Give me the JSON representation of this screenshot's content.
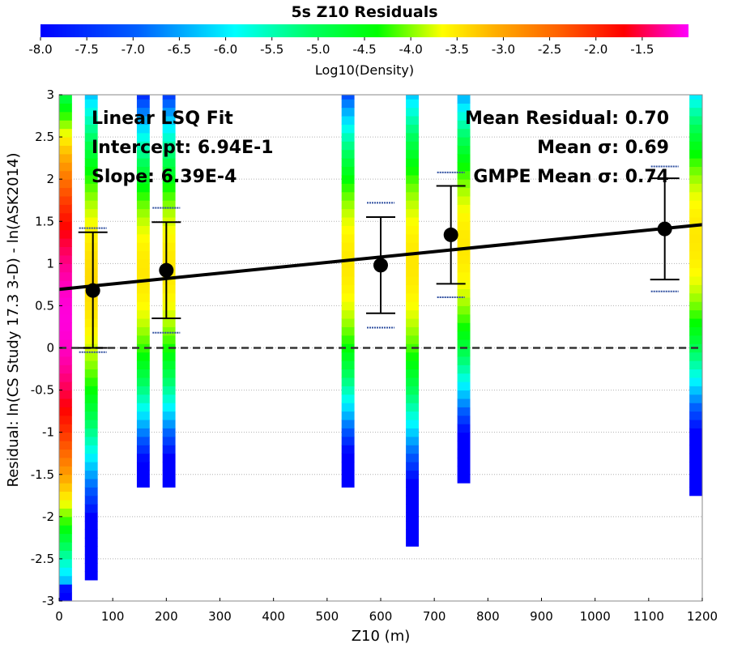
{
  "chart_data": {
    "type": "scatter",
    "title": "5s Z10 Residuals",
    "xlabel": "Z10 (m)",
    "ylabel": "Residual: ln(CS Study 17.3 3-D) - ln(ASK2014)",
    "xlim": [
      0,
      1200
    ],
    "ylim": [
      -3,
      3
    ],
    "x_ticks": [
      "0",
      "100",
      "200",
      "300",
      "400",
      "500",
      "600",
      "700",
      "800",
      "900",
      "1000",
      "1100",
      "1200"
    ],
    "y_ticks": [
      "-3",
      "-2.5",
      "-2",
      "-1.5",
      "-1",
      "-0.5",
      "0",
      "0.5",
      "1",
      "1.5",
      "2",
      "2.5",
      "3"
    ],
    "grid": "horizontal dotted",
    "colorbar": {
      "label": "Log10(Density)",
      "range": [
        -8.0,
        -1.0
      ],
      "ticks": [
        "-8.0",
        "-7.5",
        "-7.0",
        "-6.5",
        "-6.0",
        "-5.5",
        "-5.0",
        "-4.5",
        "-4.0",
        "-3.5",
        "-3.0",
        "-2.5",
        "-2.0",
        "-1.5"
      ],
      "colormap": "rainbow: blue, cyan, green, yellow, orange, red, magenta"
    },
    "fit_line": {
      "intercept": 0.694,
      "slope": 0.000639
    },
    "zero_line": 0,
    "bins": [
      {
        "x": 63,
        "mean": 0.68,
        "sigma_low": 0.0,
        "sigma_high": 1.37,
        "gmpe_low": -0.05,
        "gmpe_high": 1.42
      },
      {
        "x": 200,
        "mean": 0.92,
        "sigma_low": 0.35,
        "sigma_high": 1.49,
        "gmpe_low": 0.18,
        "gmpe_high": 1.66
      },
      {
        "x": 600,
        "mean": 0.98,
        "sigma_low": 0.41,
        "sigma_high": 1.55,
        "gmpe_low": 0.24,
        "gmpe_high": 1.72
      },
      {
        "x": 731,
        "mean": 1.34,
        "sigma_low": 0.76,
        "sigma_high": 1.92,
        "gmpe_low": 0.6,
        "gmpe_high": 2.08
      },
      {
        "x": 1130,
        "mean": 1.41,
        "sigma_low": 0.81,
        "sigma_high": 2.01,
        "gmpe_low": 0.67,
        "gmpe_high": 2.15
      }
    ],
    "density_columns": [
      {
        "x0": 0,
        "x1": 24,
        "ymin": -3.0,
        "ymax": 3.0,
        "peak": 0.35,
        "peak_logd": -1.1
      },
      {
        "x0": 48,
        "x1": 72,
        "ymin": -2.75,
        "ymax": 3.0,
        "peak": 0.8,
        "peak_logd": -3.4
      },
      {
        "x0": 145,
        "x1": 169,
        "ymin": -1.65,
        "ymax": 3.0,
        "peak": 0.9,
        "peak_logd": -3.5
      },
      {
        "x0": 193,
        "x1": 217,
        "ymin": -1.65,
        "ymax": 3.0,
        "peak": 0.95,
        "peak_logd": -3.5
      },
      {
        "x0": 527,
        "x1": 551,
        "ymin": -1.65,
        "ymax": 3.0,
        "peak": 1.0,
        "peak_logd": -3.5
      },
      {
        "x0": 647,
        "x1": 671,
        "ymin": -2.35,
        "ymax": 3.0,
        "peak": 1.0,
        "peak_logd": -3.5
      },
      {
        "x0": 743,
        "x1": 767,
        "ymin": -1.6,
        "ymax": 3.0,
        "peak": 1.2,
        "peak_logd": -3.5
      },
      {
        "x0": 1176,
        "x1": 1200,
        "ymin": -1.75,
        "ymax": 3.0,
        "peak": 1.3,
        "peak_logd": -3.5
      }
    ],
    "annotations_left": [
      "Linear LSQ Fit",
      "Intercept: 6.94E-1",
      "Slope: 6.39E-4"
    ],
    "annotations_right": [
      "Mean Residual: 0.70",
      "Mean σ: 0.69",
      "GMPE Mean σ: 0.74"
    ]
  }
}
